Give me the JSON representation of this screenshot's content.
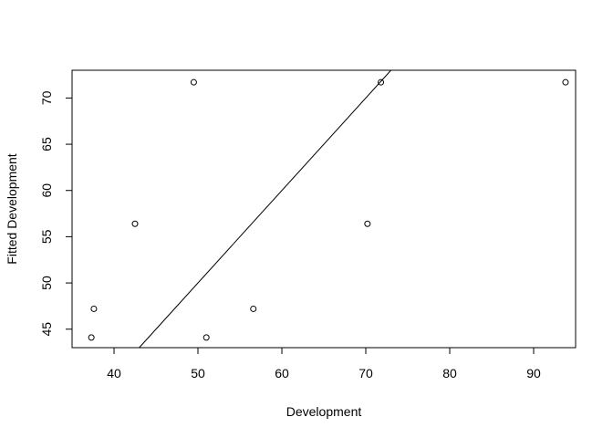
{
  "chart_data": {
    "type": "scatter",
    "title": "",
    "xlabel": "Development",
    "ylabel": "Fitted Development",
    "xlim": [
      35,
      95
    ],
    "ylim": [
      43,
      73
    ],
    "xticks": [
      40,
      50,
      60,
      70,
      80,
      90
    ],
    "yticks": [
      45,
      50,
      55,
      60,
      65,
      70
    ],
    "xtick_labels": [
      "40",
      "50",
      "60",
      "70",
      "80",
      "90"
    ],
    "ytick_labels": [
      "45",
      "50",
      "55",
      "60",
      "65",
      "70"
    ],
    "grid": false,
    "point_marker": "open-circle",
    "points": [
      {
        "x": 37.3,
        "y": 44.1
      },
      {
        "x": 37.6,
        "y": 47.2
      },
      {
        "x": 42.5,
        "y": 56.4
      },
      {
        "x": 49.5,
        "y": 71.7
      },
      {
        "x": 51.0,
        "y": 44.1
      },
      {
        "x": 56.6,
        "y": 47.2
      },
      {
        "x": 70.2,
        "y": 56.4
      },
      {
        "x": 71.8,
        "y": 71.7
      },
      {
        "x": 93.8,
        "y": 71.7
      }
    ],
    "reference_line": {
      "slope": 1,
      "intercept": 0
    }
  }
}
